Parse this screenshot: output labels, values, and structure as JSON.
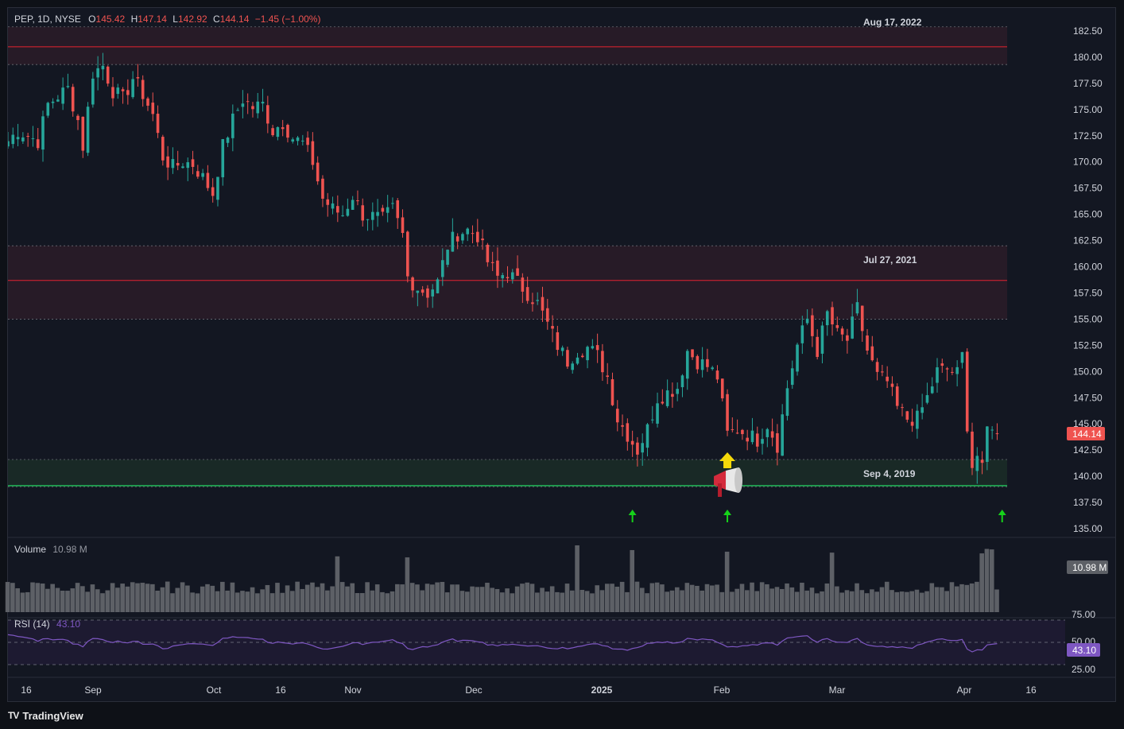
{
  "header": {
    "symbol": "PEP, 1D, NYSE",
    "open_label": "O",
    "open": "145.42",
    "high_label": "H",
    "high": "147.14",
    "low_label": "L",
    "low": "142.92",
    "close_label": "C",
    "close": "144.14",
    "change": "−1.45 (−1.00%)"
  },
  "volume_pane": {
    "label": "Volume",
    "value": "10.98 M",
    "badge": "10.98 M"
  },
  "rsi_pane": {
    "label": "RSI (14)",
    "value": "43.10",
    "badge": "43.10",
    "ticks": [
      "75.00",
      "50.00",
      "25.00"
    ]
  },
  "price_badge": "144.14",
  "brand": {
    "name": "TradingView",
    "logo": "TV"
  },
  "colors": {
    "up": "#26a69a",
    "down": "#ef5350",
    "resistance_line": "#b2202e",
    "support_line": "#22c55e",
    "volume_bar": "#5d6066",
    "rsi_line": "#7e57c2",
    "arrow_green": "#16d21a",
    "arrow_yellow": "#f5d90a",
    "background": "#131722"
  },
  "icons": [
    "up-arrow-icon",
    "megaphone-icon"
  ],
  "chart_data": {
    "type": "candlestick",
    "symbol": "PEP",
    "timeframe": "1D",
    "ylim": [
      135.0,
      182.5
    ],
    "y_ticks": [
      "182.50",
      "180.00",
      "177.50",
      "175.00",
      "172.50",
      "170.00",
      "167.50",
      "165.00",
      "162.50",
      "160.00",
      "157.50",
      "155.00",
      "152.50",
      "150.00",
      "147.50",
      "145.00",
      "142.50",
      "140.00",
      "137.50",
      "135.00"
    ],
    "x_ticks": [
      "16",
      "Sep",
      "Oct",
      "16",
      "Nov",
      "Dec",
      "2025",
      "Feb",
      "Mar",
      "Apr",
      "16"
    ],
    "zones": [
      {
        "label": "Aug 17, 2022",
        "top": 182.9,
        "line": 181.0,
        "bottom": 179.3,
        "color": "resistance"
      },
      {
        "label": "Jul 27, 2021",
        "top": 162.0,
        "line": 158.7,
        "bottom": 155.0,
        "color": "resistance"
      },
      {
        "label": "Sep 4, 2019",
        "top": 141.6,
        "line": 139.1,
        "bottom": 139.0,
        "color": "support"
      }
    ],
    "markers": [
      {
        "type": "green-arrow",
        "date_index": 125
      },
      {
        "type": "green-arrow",
        "date_index": 144
      },
      {
        "type": "green-arrow",
        "date_index": 199
      },
      {
        "type": "yellow-arrow",
        "date_index": 144
      },
      {
        "type": "megaphone",
        "date_index": 144
      }
    ],
    "anchors": [
      [
        0,
        172.0
      ],
      [
        2,
        173.0
      ],
      [
        6,
        172.0
      ],
      [
        8,
        175.5
      ],
      [
        10,
        176.3
      ],
      [
        12,
        177.0
      ],
      [
        14,
        174.0
      ],
      [
        15,
        171.5
      ],
      [
        17,
        178.5
      ],
      [
        19,
        179.2
      ],
      [
        21,
        176.8
      ],
      [
        23,
        176.0
      ],
      [
        25,
        178.0
      ],
      [
        27,
        176.5
      ],
      [
        29,
        174.5
      ],
      [
        31,
        170.5
      ],
      [
        33,
        169.5
      ],
      [
        35,
        170.0
      ],
      [
        37,
        169.8
      ],
      [
        39,
        168.5
      ],
      [
        41,
        167.0
      ],
      [
        43,
        171.5
      ],
      [
        45,
        174.0
      ],
      [
        47,
        176.0
      ],
      [
        49,
        175.2
      ],
      [
        51,
        175.5
      ],
      [
        53,
        173.0
      ],
      [
        55,
        173.8
      ],
      [
        57,
        172.3
      ],
      [
        59,
        171.8
      ],
      [
        61,
        170.0
      ],
      [
        63,
        166.5
      ],
      [
        65,
        165.5
      ],
      [
        67,
        165.0
      ],
      [
        69,
        166.8
      ],
      [
        71,
        165.0
      ],
      [
        73,
        164.8
      ],
      [
        75,
        164.5
      ],
      [
        77,
        165.5
      ],
      [
        79,
        163.0
      ],
      [
        80,
        159.0
      ],
      [
        82,
        158.0
      ],
      [
        84,
        157.5
      ],
      [
        86,
        158.5
      ],
      [
        88,
        162.0
      ],
      [
        90,
        163.2
      ],
      [
        92,
        163.5
      ],
      [
        94,
        163.0
      ],
      [
        96,
        160.5
      ],
      [
        98,
        159.0
      ],
      [
        100,
        159.5
      ],
      [
        102,
        158.5
      ],
      [
        104,
        157.5
      ],
      [
        106,
        156.5
      ],
      [
        108,
        154.5
      ],
      [
        110,
        152.5
      ],
      [
        112,
        151.0
      ],
      [
        114,
        152.0
      ],
      [
        116,
        152.3
      ],
      [
        118,
        151.5
      ],
      [
        120,
        149.5
      ],
      [
        122,
        145.5
      ],
      [
        124,
        144.0
      ],
      [
        126,
        142.5
      ],
      [
        128,
        144.5
      ],
      [
        130,
        147.5
      ],
      [
        132,
        148.0
      ],
      [
        134,
        148.5
      ],
      [
        136,
        152.0
      ],
      [
        138,
        151.0
      ],
      [
        140,
        150.5
      ],
      [
        142,
        149.5
      ],
      [
        144,
        144.0
      ],
      [
        146,
        144.5
      ],
      [
        148,
        144.0
      ],
      [
        150,
        143.5
      ],
      [
        152,
        145.0
      ],
      [
        154,
        143.0
      ],
      [
        156,
        148.5
      ],
      [
        158,
        152.5
      ],
      [
        160,
        155.0
      ],
      [
        162,
        152.0
      ],
      [
        164,
        155.5
      ],
      [
        166,
        153.5
      ],
      [
        168,
        153.0
      ],
      [
        170,
        156.0
      ],
      [
        172,
        152.0
      ],
      [
        174,
        149.5
      ],
      [
        176,
        149.0
      ],
      [
        178,
        146.5
      ],
      [
        180,
        145.5
      ],
      [
        182,
        145.5
      ],
      [
        184,
        147.5
      ],
      [
        186,
        150.0
      ],
      [
        188,
        150.2
      ],
      [
        190,
        149.8
      ],
      [
        191,
        151.5
      ],
      [
        192,
        145.0
      ],
      [
        193,
        141.0
      ],
      [
        194,
        142.0
      ],
      [
        195,
        140.5
      ],
      [
        196,
        144.5
      ],
      [
        197,
        145.0
      ],
      [
        198,
        144.1
      ]
    ],
    "volume_series": "daily bars, gray, ~8–12 M typical with spikes near Nov 6, Dec 20, Feb 4 and early Apr",
    "rsi_series": "oscillates between ~28 and ~65, last 43.10"
  }
}
